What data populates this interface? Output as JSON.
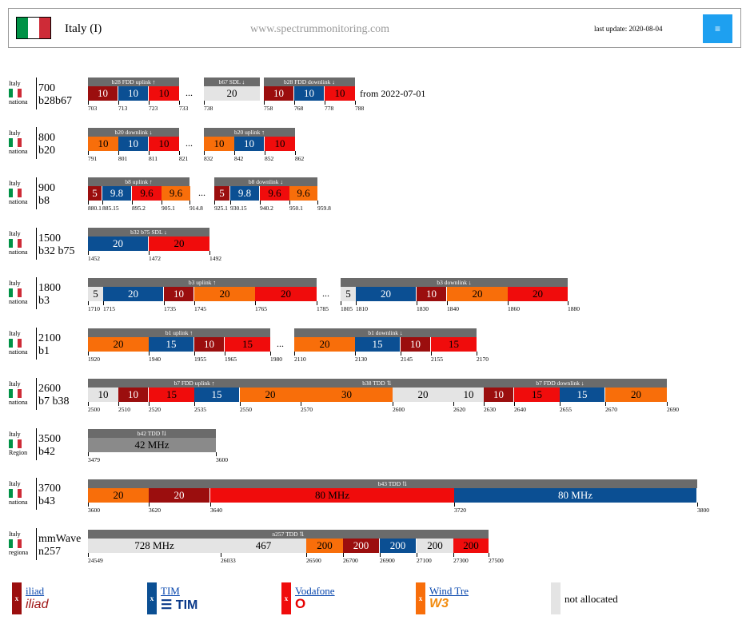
{
  "header": {
    "country": "Italy (I)",
    "site": "www.spectrummonitoring.com",
    "last_update": "last update: 2020-08-04",
    "menu_icon": "≡"
  },
  "colors": {
    "iliad": "#9b0e0e",
    "tim": "#0b4f93",
    "vodafone": "#f00c0c",
    "windtre": "#f86e0a",
    "not_allocated": "#e4e4e4"
  },
  "rows": [
    {
      "country": "Italy",
      "scope": "nationa",
      "freq": "700",
      "band": "b28b67"
    },
    {
      "country": "Italy",
      "scope": "nationa",
      "freq": "800",
      "band": "b20"
    },
    {
      "country": "Italy",
      "scope": "nationa",
      "freq": "900",
      "band": "b8"
    },
    {
      "country": "Italy",
      "scope": "nationa",
      "freq": "1500",
      "band": "b32 b75"
    },
    {
      "country": "Italy",
      "scope": "nationa",
      "freq": "1800",
      "band": "b3"
    },
    {
      "country": "Italy",
      "scope": "nationa",
      "freq": "2100",
      "band": "b1"
    },
    {
      "country": "Italy",
      "scope": "nationa",
      "freq": "2600",
      "band": "b7 b38"
    },
    {
      "country": "Italy",
      "scope": "Region",
      "freq": "3500",
      "band": "b42"
    },
    {
      "country": "Italy",
      "scope": "nationa",
      "freq": "3700",
      "band": "b43"
    },
    {
      "country": "Italy",
      "scope": "regiona",
      "freq": "mmWave",
      "band": "n257"
    }
  ],
  "headers": [
    [
      "b28 FDD uplink ↑",
      "b67 SDL ↓",
      "b28 FDD downlink ↓"
    ],
    [
      "b20 downlink ↓",
      "b20 uplink ↑"
    ],
    [
      "b8 uplink ↑",
      "b8 downlink ↓"
    ],
    [
      "b32 b75 SDL ↓"
    ],
    [
      "b3 uplink ↑",
      "b3 downlink ↓"
    ],
    [
      "b1 uplink ↑",
      "b1 downlink ↓"
    ],
    [
      "b7 FDD uplink ↑",
      "b38 TDD ⇅",
      "b7 FDD downlink ↓"
    ],
    [
      "b42 TDD ⇅"
    ],
    [
      "b43 TDD ⇅"
    ],
    [
      "n257 TDD ⇅"
    ]
  ],
  "blocks": [
    [
      "10",
      "10",
      "10",
      "20",
      "10",
      "10",
      "10"
    ],
    [
      "10",
      "10",
      "10",
      "10",
      "10",
      "10"
    ],
    [
      "5",
      "9.8",
      "9.6",
      "9.6",
      "5",
      "9.8",
      "9.6",
      "9.6"
    ],
    [
      "20",
      "20"
    ],
    [
      "5",
      "20",
      "10",
      "20",
      "20",
      "5",
      "20",
      "10",
      "20",
      "20"
    ],
    [
      "20",
      "15",
      "10",
      "15",
      "20",
      "15",
      "10",
      "15"
    ],
    [
      "10",
      "10",
      "15",
      "15",
      "20",
      "30",
      "20",
      "10",
      "10",
      "15",
      "15",
      "20"
    ],
    [
      "42 MHz"
    ],
    [
      "20",
      "20",
      "80 MHz",
      "80 MHz"
    ],
    [
      "728 MHz",
      "467",
      "200",
      "200",
      "200",
      "200",
      "200"
    ]
  ],
  "ticks": [
    [
      "703",
      "713",
      "723",
      "733",
      "738",
      "758",
      "768",
      "778",
      "788"
    ],
    [
      "791",
      "801",
      "811",
      "821",
      "832",
      "842",
      "852",
      "862"
    ],
    [
      "880.1",
      "885.15",
      "895.2",
      "905.1",
      "914.8",
      "925.1",
      "930.15",
      "940.2",
      "950.1",
      "959.8"
    ],
    [
      "1452",
      "1472",
      "1492"
    ],
    [
      "1710",
      "1715",
      "1735",
      "1745",
      "1765",
      "1785",
      "1805",
      "1810",
      "1830",
      "1840",
      "1860",
      "1880"
    ],
    [
      "1920",
      "1940",
      "1955",
      "1965",
      "1980",
      "2110",
      "2130",
      "2145",
      "2155",
      "2170"
    ],
    [
      "2500",
      "2510",
      "2520",
      "2535",
      "2550",
      "2570",
      "2600",
      "2620",
      "2630",
      "2640",
      "2655",
      "2670",
      "2690"
    ],
    [
      "3479",
      "3600"
    ],
    [
      "3600",
      "3620",
      "3640",
      "3720",
      "3800"
    ],
    [
      "24549",
      "26033",
      "26500",
      "26700",
      "26900",
      "27100",
      "27300",
      "27500"
    ]
  ],
  "dots": "...",
  "note_700": "from 2022-07-01",
  "legend": {
    "x_mark": "x",
    "iliad": {
      "name": "iliad",
      "logo": "iliad"
    },
    "tim": {
      "name": "TIM",
      "logo": "TIM"
    },
    "vodafone": {
      "name": "Vodafone",
      "logo": "O"
    },
    "windtre": {
      "name": "Wind Tre",
      "logo": "W3"
    },
    "not_allocated": "not allocated"
  }
}
